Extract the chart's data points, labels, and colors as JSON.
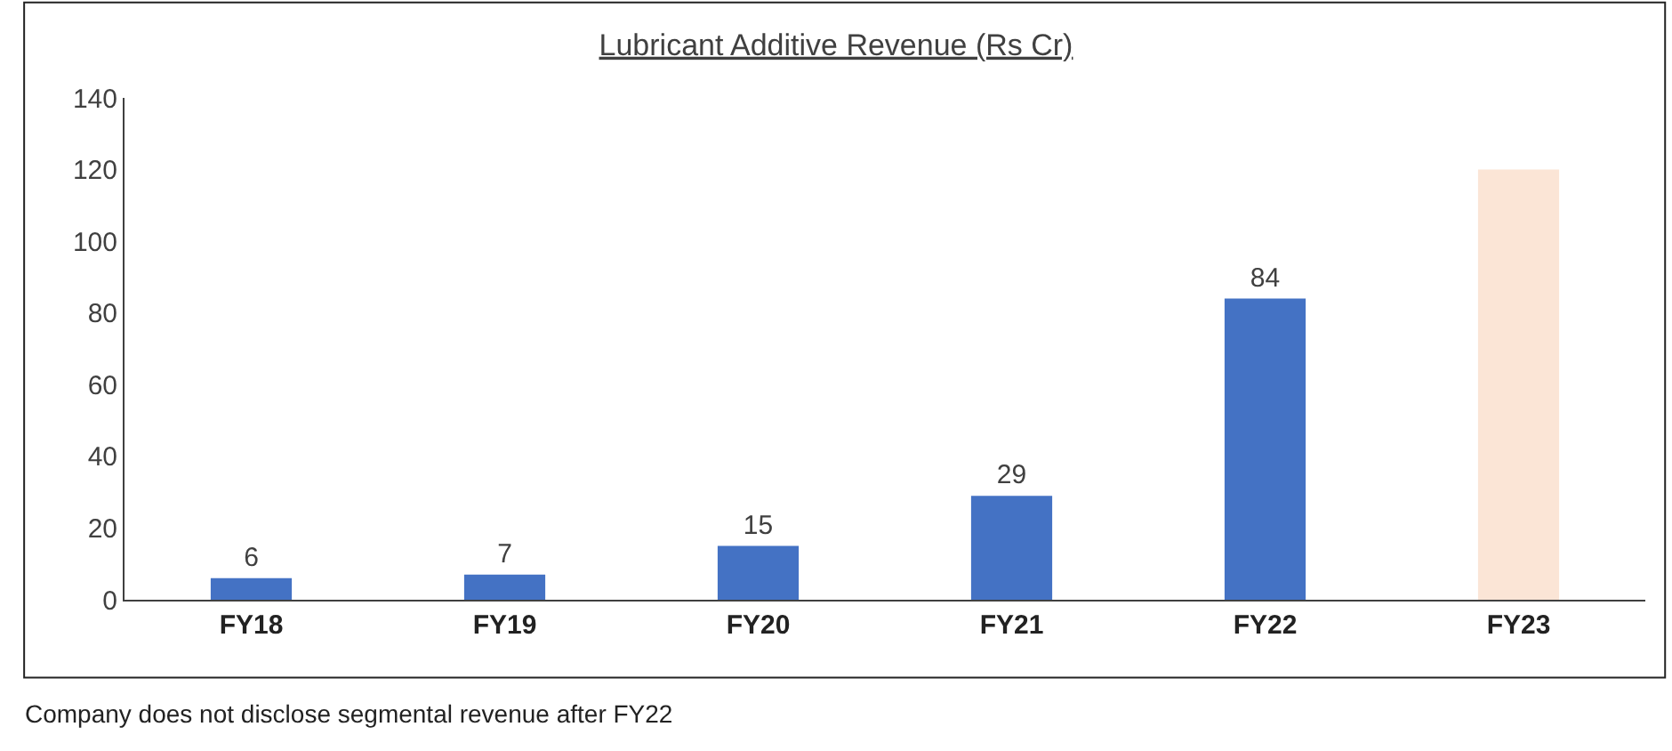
{
  "chart_data": {
    "type": "bar",
    "title": "Lubricant Additive Revenue (Rs Cr)",
    "categories": [
      "FY18",
      "FY19",
      "FY20",
      "FY21",
      "FY22",
      "FY23"
    ],
    "values": [
      6,
      7,
      15,
      29,
      84,
      120
    ],
    "colors": [
      "#4472c4",
      "#4472c4",
      "#4472c4",
      "#4472c4",
      "#4472c4",
      "#fbe5d6"
    ],
    "value_labels": [
      "6",
      "7",
      "15",
      "29",
      "84",
      null
    ],
    "ylim": [
      0,
      140
    ],
    "yticks": [
      0,
      20,
      40,
      60,
      80,
      100,
      120,
      140
    ],
    "annotations": [
      "Company does not disclose segmental revenue after FY22"
    ]
  }
}
